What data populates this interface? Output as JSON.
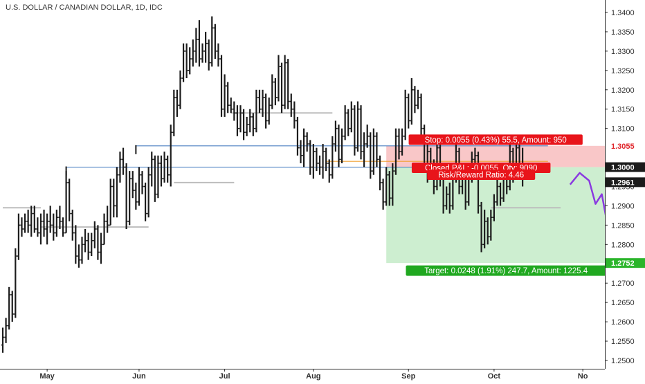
{
  "chart_data": {
    "type": "ohlc",
    "title": "U.S. DOLLAR / CANADIAN DOLLAR, 1D, IDC",
    "ylim": [
      1.248,
      1.3425
    ],
    "y_ticks": [
      "1.3400",
      "1.3350",
      "1.3300",
      "1.3250",
      "1.3200",
      "1.3150",
      "1.3100",
      "1.3050",
      "1.3000",
      "1.2950",
      "1.2900",
      "1.2850",
      "1.2800",
      "1.2750",
      "1.2700",
      "1.2650",
      "1.2600",
      "1.2550",
      "1.2500"
    ],
    "x_labels": [
      {
        "label": "May",
        "bar": 14
      },
      {
        "label": "Jun",
        "bar": 43
      },
      {
        "label": "Jul",
        "bar": 70
      },
      {
        "label": "Aug",
        "bar": 98
      },
      {
        "label": "Sep",
        "bar": 128
      },
      {
        "label": "Oct",
        "bar": 155
      },
      {
        "label": "No",
        "bar": 183
      }
    ],
    "bars": [
      [
        1.254,
        1.252,
        1.2585,
        1.256
      ],
      [
        1.256,
        1.2545,
        1.261,
        1.259
      ],
      [
        1.259,
        1.258,
        1.269,
        1.267
      ],
      [
        1.267,
        1.26,
        1.268,
        1.262
      ],
      [
        1.262,
        1.261,
        1.279,
        1.277
      ],
      [
        1.277,
        1.276,
        1.288,
        1.285
      ],
      [
        1.285,
        1.282,
        1.287,
        1.284
      ],
      [
        1.284,
        1.283,
        1.288,
        1.286
      ],
      [
        1.286,
        1.283,
        1.289,
        1.285
      ],
      [
        1.285,
        1.282,
        1.29,
        1.288
      ],
      [
        1.288,
        1.283,
        1.29,
        1.284
      ],
      [
        1.284,
        1.282,
        1.287,
        1.283
      ],
      [
        1.283,
        1.28,
        1.288,
        1.286
      ],
      [
        1.286,
        1.282,
        1.289,
        1.284
      ],
      [
        1.284,
        1.28,
        1.288,
        1.286
      ],
      [
        1.286,
        1.283,
        1.29,
        1.285
      ],
      [
        1.285,
        1.281,
        1.288,
        1.283
      ],
      [
        1.283,
        1.282,
        1.289,
        1.287
      ],
      [
        1.287,
        1.284,
        1.29,
        1.286
      ],
      [
        1.286,
        1.282,
        1.287,
        1.283
      ],
      [
        1.283,
        1.283,
        1.299,
        1.296
      ],
      [
        1.296,
        1.286,
        1.297,
        1.288
      ],
      [
        1.288,
        1.281,
        1.289,
        1.283
      ],
      [
        1.283,
        1.275,
        1.285,
        1.277
      ],
      [
        1.277,
        1.274,
        1.28,
        1.276
      ],
      [
        1.276,
        1.275,
        1.282,
        1.28
      ],
      [
        1.28,
        1.278,
        1.284,
        1.281
      ],
      [
        1.281,
        1.276,
        1.283,
        1.278
      ],
      [
        1.278,
        1.277,
        1.283,
        1.281
      ],
      [
        1.281,
        1.279,
        1.286,
        1.284
      ],
      [
        1.284,
        1.276,
        1.285,
        1.278
      ],
      [
        1.278,
        1.275,
        1.283,
        1.28
      ],
      [
        1.28,
        1.28,
        1.288,
        1.286
      ],
      [
        1.286,
        1.283,
        1.29,
        1.285
      ],
      [
        1.285,
        1.285,
        1.297,
        1.295
      ],
      [
        1.295,
        1.287,
        1.297,
        1.29
      ],
      [
        1.29,
        1.287,
        1.3,
        1.298
      ],
      [
        1.298,
        1.296,
        1.304,
        1.302
      ],
      [
        1.302,
        1.298,
        1.305,
        1.3
      ],
      [
        1.3,
        1.284,
        1.301,
        1.286
      ],
      [
        1.286,
        1.285,
        1.299,
        1.297
      ],
      [
        1.297,
        1.292,
        1.299,
        1.294
      ],
      [
        1.294,
        1.289,
        1.296,
        1.291
      ],
      [
        1.291,
        1.29,
        1.3,
        1.298
      ],
      [
        1.298,
        1.293,
        1.299,
        1.295
      ],
      [
        1.295,
        1.286,
        1.296,
        1.288
      ],
      [
        1.288,
        1.287,
        1.3,
        1.298
      ],
      [
        1.298,
        1.295,
        1.304,
        1.302
      ],
      [
        1.302,
        1.291,
        1.303,
        1.293
      ],
      [
        1.293,
        1.292,
        1.303,
        1.301
      ],
      [
        1.301,
        1.295,
        1.303,
        1.297
      ],
      [
        1.297,
        1.296,
        1.304,
        1.302
      ],
      [
        1.302,
        1.296,
        1.303,
        1.298
      ],
      [
        1.298,
        1.295,
        1.311,
        1.309
      ],
      [
        1.309,
        1.308,
        1.32,
        1.318
      ],
      [
        1.318,
        1.313,
        1.32,
        1.316
      ],
      [
        1.316,
        1.315,
        1.325,
        1.323
      ],
      [
        1.323,
        1.322,
        1.332,
        1.33
      ],
      [
        1.33,
        1.323,
        1.332,
        1.325
      ],
      [
        1.325,
        1.324,
        1.331,
        1.328
      ],
      [
        1.328,
        1.326,
        1.333,
        1.33
      ],
      [
        1.33,
        1.327,
        1.336,
        1.333
      ],
      [
        1.333,
        1.326,
        1.338,
        1.328
      ],
      [
        1.328,
        1.327,
        1.332,
        1.33
      ],
      [
        1.33,
        1.327,
        1.335,
        1.332
      ],
      [
        1.332,
        1.325,
        1.333,
        1.327
      ],
      [
        1.327,
        1.326,
        1.339,
        1.336
      ],
      [
        1.336,
        1.328,
        1.337,
        1.33
      ],
      [
        1.33,
        1.326,
        1.332,
        1.328
      ],
      [
        1.328,
        1.313,
        1.329,
        1.315
      ],
      [
        1.315,
        1.313,
        1.324,
        1.321
      ],
      [
        1.321,
        1.314,
        1.322,
        1.316
      ],
      [
        1.316,
        1.314,
        1.318,
        1.315
      ],
      [
        1.315,
        1.312,
        1.317,
        1.314
      ],
      [
        1.314,
        1.308,
        1.316,
        1.31
      ],
      [
        1.31,
        1.309,
        1.316,
        1.314
      ],
      [
        1.314,
        1.307,
        1.315,
        1.309
      ],
      [
        1.309,
        1.308,
        1.313,
        1.311
      ],
      [
        1.311,
        1.309,
        1.315,
        1.313
      ],
      [
        1.313,
        1.308,
        1.314,
        1.31
      ],
      [
        1.31,
        1.309,
        1.32,
        1.318
      ],
      [
        1.318,
        1.314,
        1.32,
        1.315
      ],
      [
        1.315,
        1.313,
        1.32,
        1.318
      ],
      [
        1.318,
        1.31,
        1.319,
        1.312
      ],
      [
        1.312,
        1.311,
        1.318,
        1.316
      ],
      [
        1.316,
        1.315,
        1.324,
        1.322
      ],
      [
        1.322,
        1.316,
        1.323,
        1.318
      ],
      [
        1.318,
        1.317,
        1.329,
        1.326
      ],
      [
        1.326,
        1.314,
        1.327,
        1.316
      ],
      [
        1.316,
        1.315,
        1.329,
        1.327
      ],
      [
        1.327,
        1.315,
        1.328,
        1.317
      ],
      [
        1.317,
        1.313,
        1.319,
        1.315
      ],
      [
        1.315,
        1.31,
        1.317,
        1.312
      ],
      [
        1.312,
        1.303,
        1.313,
        1.305
      ],
      [
        1.305,
        1.301,
        1.307,
        1.303
      ],
      [
        1.303,
        1.3,
        1.31,
        1.308
      ],
      [
        1.308,
        1.304,
        1.309,
        1.306
      ],
      [
        1.306,
        1.298,
        1.307,
        1.3
      ],
      [
        1.3,
        1.297,
        1.306,
        1.304
      ],
      [
        1.304,
        1.299,
        1.305,
        1.301
      ],
      [
        1.301,
        1.298,
        1.303,
        1.3
      ],
      [
        1.3,
        1.297,
        1.306,
        1.304
      ],
      [
        1.304,
        1.299,
        1.305,
        1.301
      ],
      [
        1.301,
        1.296,
        1.302,
        1.298
      ],
      [
        1.298,
        1.297,
        1.308,
        1.306
      ],
      [
        1.306,
        1.304,
        1.312,
        1.31
      ],
      [
        1.31,
        1.3,
        1.311,
        1.302
      ],
      [
        1.302,
        1.301,
        1.31,
        1.308
      ],
      [
        1.308,
        1.307,
        1.316,
        1.314
      ],
      [
        1.314,
        1.308,
        1.315,
        1.31
      ],
      [
        1.31,
        1.309,
        1.317,
        1.315
      ],
      [
        1.315,
        1.303,
        1.316,
        1.305
      ],
      [
        1.305,
        1.304,
        1.317,
        1.315
      ],
      [
        1.315,
        1.302,
        1.316,
        1.304
      ],
      [
        1.304,
        1.3,
        1.309,
        1.306
      ],
      [
        1.306,
        1.305,
        1.311,
        1.308
      ],
      [
        1.308,
        1.297,
        1.309,
        1.299
      ],
      [
        1.299,
        1.298,
        1.31,
        1.308
      ],
      [
        1.308,
        1.3,
        1.309,
        1.302
      ],
      [
        1.302,
        1.294,
        1.303,
        1.296
      ],
      [
        1.296,
        1.289,
        1.297,
        1.291
      ],
      [
        1.291,
        1.29,
        1.3,
        1.298
      ],
      [
        1.298,
        1.29,
        1.299,
        1.292
      ],
      [
        1.292,
        1.29,
        1.301,
        1.299
      ],
      [
        1.299,
        1.298,
        1.31,
        1.308
      ],
      [
        1.308,
        1.302,
        1.31,
        1.304
      ],
      [
        1.304,
        1.303,
        1.31,
        1.308
      ],
      [
        1.308,
        1.307,
        1.32,
        1.318
      ],
      [
        1.318,
        1.31,
        1.319,
        1.312
      ],
      [
        1.312,
        1.311,
        1.323,
        1.32
      ],
      [
        1.32,
        1.314,
        1.321,
        1.316
      ],
      [
        1.316,
        1.315,
        1.32,
        1.318
      ],
      [
        1.318,
        1.308,
        1.319,
        1.31
      ],
      [
        1.31,
        1.299,
        1.311,
        1.301
      ],
      [
        1.301,
        1.296,
        1.306,
        1.304
      ],
      [
        1.304,
        1.299,
        1.305,
        1.301
      ],
      [
        1.301,
        1.293,
        1.302,
        1.295
      ],
      [
        1.295,
        1.294,
        1.307,
        1.305
      ],
      [
        1.305,
        1.295,
        1.306,
        1.297
      ],
      [
        1.297,
        1.288,
        1.298,
        1.29
      ],
      [
        1.29,
        1.289,
        1.295,
        1.293
      ],
      [
        1.293,
        1.288,
        1.296,
        1.29
      ],
      [
        1.29,
        1.289,
        1.301,
        1.299
      ],
      [
        1.299,
        1.296,
        1.306,
        1.304
      ],
      [
        1.304,
        1.293,
        1.305,
        1.295
      ],
      [
        1.295,
        1.293,
        1.3,
        1.297
      ],
      [
        1.297,
        1.289,
        1.299,
        1.291
      ],
      [
        1.291,
        1.29,
        1.3,
        1.298
      ],
      [
        1.298,
        1.296,
        1.304,
        1.302
      ],
      [
        1.302,
        1.299,
        1.305,
        1.303
      ],
      [
        1.303,
        1.288,
        1.304,
        1.29
      ],
      [
        1.29,
        1.278,
        1.291,
        1.28
      ],
      [
        1.28,
        1.279,
        1.289,
        1.286
      ],
      [
        1.286,
        1.28,
        1.287,
        1.282
      ],
      [
        1.282,
        1.281,
        1.289,
        1.287
      ],
      [
        1.287,
        1.286,
        1.293,
        1.291
      ],
      [
        1.291,
        1.29,
        1.297,
        1.295
      ],
      [
        1.295,
        1.29,
        1.296,
        1.292
      ],
      [
        1.292,
        1.291,
        1.3,
        1.298
      ],
      [
        1.298,
        1.293,
        1.299,
        1.295
      ],
      [
        1.295,
        1.294,
        1.306,
        1.304
      ],
      [
        1.304,
        1.296,
        1.305,
        1.298
      ],
      [
        1.298,
        1.297,
        1.307,
        1.305
      ],
      [
        1.305,
        1.299,
        1.306,
        1.301
      ],
      [
        1.301,
        1.295,
        1.305,
        1.297
      ]
    ],
    "horizontal_lines": [
      {
        "name": "resistance-upper",
        "color": "#4a7fc1",
        "price": 1.3055,
        "from_bar": 42,
        "to_bar": 172
      },
      {
        "name": "resistance-lower",
        "color": "#4a7fc1",
        "price": 1.3,
        "from_bar": 20,
        "to_bar": 158
      },
      {
        "name": "entry-line",
        "color": "#f0a030",
        "price": 1.3015,
        "from_bar": 102,
        "to_bar": 172
      }
    ],
    "grey_levels": [
      {
        "price": 1.2895,
        "from_bar": 0,
        "to_bar": 12
      },
      {
        "price": 1.2845,
        "from_bar": 12,
        "to_bar": 46
      },
      {
        "price": 1.296,
        "from_bar": 54,
        "to_bar": 73
      },
      {
        "price": 1.314,
        "from_bar": 72,
        "to_bar": 104
      },
      {
        "price": 1.2895,
        "from_bar": 154,
        "to_bar": 176
      }
    ],
    "position": {
      "direction": "short",
      "entry": 1.3,
      "stop": 1.3055,
      "target": 1.2752,
      "from_bar": 121,
      "to_bar": 190,
      "stop_label": "Stop: 0.0055 (0.43%) 55.5, Amount: 950",
      "closed_label": "Closed P&L: -0.0055, Qty: 9090",
      "rr_label": "Risk/Reward Ratio: 4.46",
      "target_label": "Target: 0.0248 (1.91%) 247.7, Amount: 1225.4"
    },
    "projection_path": [
      [
        179,
        1.2955
      ],
      [
        182,
        1.2985
      ],
      [
        185,
        1.2965
      ],
      [
        187,
        1.2905
      ],
      [
        189,
        1.293
      ],
      [
        193,
        1.2752
      ]
    ],
    "price_tags": [
      {
        "price": 1.3055,
        "text": "1.3055",
        "bg": "#ffffff",
        "fg": "#e0262b"
      },
      {
        "price": 1.3,
        "text": "1.3000",
        "bg": "#1b1b1b",
        "fg": "#ffffff"
      },
      {
        "price": 1.2961,
        "text": "1.2961",
        "bg": "#1b1b1b",
        "fg": "#ffffff"
      },
      {
        "price": 1.2752,
        "text": "1.2752",
        "bg": "#2bb52b",
        "fg": "#ffffff"
      }
    ],
    "colors": {
      "bar": "#1c1c1c",
      "stop_fill": "#f9c7c8",
      "target_fill": "#cdeed0",
      "stop_label_bg": "#e8141a",
      "target_label_bg": "#20a820",
      "projection": "#8a3ae0"
    }
  }
}
